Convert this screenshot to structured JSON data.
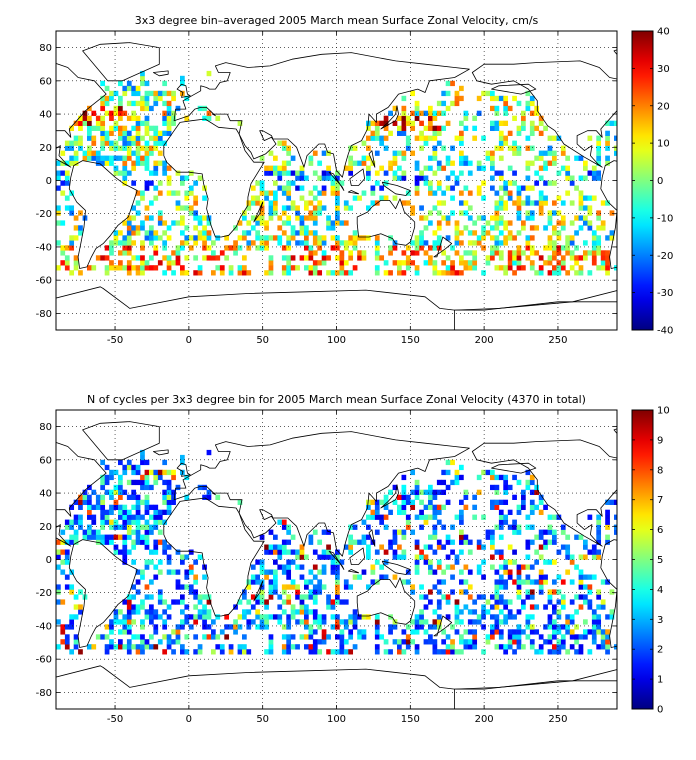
{
  "chart_data": [
    {
      "type": "heatmap",
      "title": "3x3 degree bin–averaged 2005 March mean Surface Zonal Velocity, cm/s",
      "xlim": [
        -90,
        290
      ],
      "ylim": [
        -90,
        90
      ],
      "xticks": [
        -50,
        0,
        50,
        100,
        150,
        200,
        250
      ],
      "yticks": [
        80,
        60,
        40,
        20,
        0,
        -20,
        -40,
        -60,
        -80
      ],
      "grid": true,
      "colorbar": {
        "min": -40,
        "max": 40,
        "ticks": [
          40,
          30,
          20,
          10,
          0,
          -10,
          -20,
          -30,
          -40
        ]
      },
      "bin_size_deg": 3
    },
    {
      "type": "heatmap",
      "title": "N of cycles per 3x3 degree bin for 2005 March mean Surface Zonal Velocity (4370 in total)",
      "xlim": [
        -90,
        290
      ],
      "ylim": [
        -90,
        90
      ],
      "xticks": [
        -50,
        0,
        50,
        100,
        150,
        200,
        250
      ],
      "yticks": [
        80,
        60,
        40,
        20,
        0,
        -20,
        -40,
        -60,
        -80
      ],
      "grid": true,
      "colorbar": {
        "min": 0,
        "max": 10,
        "ticks": [
          10,
          9,
          8,
          7,
          6,
          5,
          4,
          3,
          2,
          1,
          0
        ]
      },
      "bin_size_deg": 3,
      "total_cycles": 4370
    }
  ]
}
